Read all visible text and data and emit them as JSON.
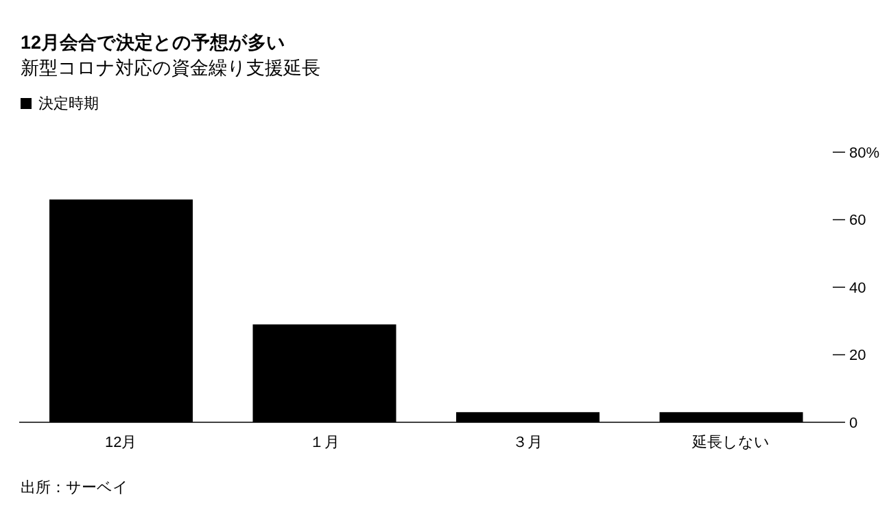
{
  "chart_data": {
    "type": "bar",
    "title": "12月会合で決定との予想が多い",
    "subtitle": "新型コロナ対応の資金繰り支援延長",
    "categories": [
      "12月",
      "１月",
      "３月",
      "延長しない"
    ],
    "series": [
      {
        "name": "決定時期",
        "color": "#000000",
        "values": [
          66,
          29,
          3,
          3
        ]
      }
    ],
    "ylim": [
      0,
      80
    ],
    "yticks": [
      0,
      20,
      40,
      60,
      {
        "value": 80,
        "label": "80%"
      }
    ],
    "legend": "top left",
    "annotations": [
      "出所：サーベイ"
    ]
  }
}
